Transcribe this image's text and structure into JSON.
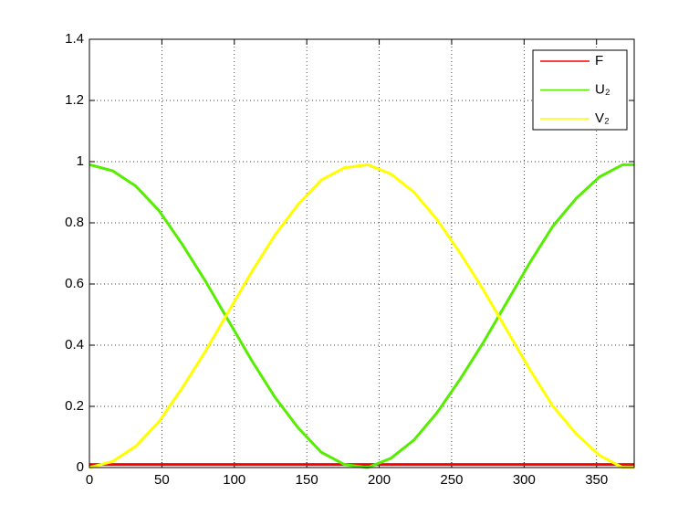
{
  "chart_data": {
    "type": "line",
    "x": [
      0,
      16,
      32,
      48,
      64,
      80,
      96,
      112,
      128,
      144,
      160,
      176,
      192,
      208,
      224,
      240,
      256,
      272,
      288,
      304,
      320,
      336,
      352,
      368,
      376
    ],
    "series": [
      {
        "name": "F",
        "color": "#ff0000",
        "values": [
          0.01,
          0.01,
          0.01,
          0.01,
          0.01,
          0.01,
          0.01,
          0.01,
          0.01,
          0.01,
          0.01,
          0.01,
          0.01,
          0.01,
          0.01,
          0.01,
          0.01,
          0.01,
          0.01,
          0.01,
          0.01,
          0.01,
          0.01,
          0.01,
          0.01
        ]
      },
      {
        "name": "U₂",
        "color": "#55ee00",
        "values": [
          0.99,
          0.97,
          0.92,
          0.84,
          0.73,
          0.61,
          0.48,
          0.35,
          0.23,
          0.13,
          0.05,
          0.01,
          0,
          0.03,
          0.09,
          0.18,
          0.29,
          0.41,
          0.54,
          0.67,
          0.79,
          0.88,
          0.95,
          0.99,
          0.99
        ]
      },
      {
        "name": "V₂",
        "color": "#ffff00",
        "values": [
          0,
          0.02,
          0.07,
          0.15,
          0.26,
          0.38,
          0.51,
          0.64,
          0.76,
          0.86,
          0.94,
          0.98,
          0.99,
          0.96,
          0.9,
          0.81,
          0.7,
          0.58,
          0.45,
          0.32,
          0.2,
          0.11,
          0.04,
          0,
          0
        ]
      }
    ],
    "xlim": [
      0,
      376
    ],
    "xticks": [
      0,
      50,
      100,
      150,
      200,
      250,
      300,
      350
    ],
    "ylim": [
      0,
      1.4
    ],
    "yticks": [
      0,
      0.2,
      0.4,
      0.6,
      0.8,
      1,
      1.2,
      1.4
    ],
    "grid": true,
    "legend": "top-right"
  }
}
